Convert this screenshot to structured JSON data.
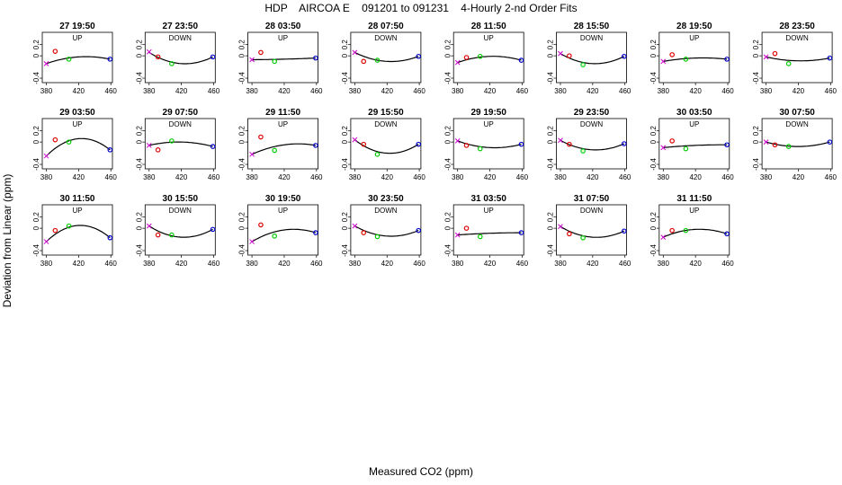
{
  "title": "HDP    AIRCOA E    091201 to 091231    4-Hourly 2-nd Order Fits",
  "xlabel": "Measured CO2 (ppm)",
  "ylabel": "Deviation from Linear (ppm)",
  "chart_data": {
    "type": "scatter",
    "xlim": [
      375,
      462
    ],
    "ylim": [
      -0.48,
      0.42
    ],
    "xticks": [
      "380",
      "420",
      "460"
    ],
    "yticks": [
      "-0.4",
      "0",
      "0.2"
    ],
    "colors": {
      "point1": "#cc00cc",
      "point2": "#dd0000",
      "point3": "#00cc00",
      "point4": "#0000cc",
      "curve": "#000000"
    },
    "panels": [
      {
        "title": "27 19:50",
        "dir": "UP",
        "points": [
          [
            380,
            -0.14
          ],
          [
            391,
            0.08
          ],
          [
            408,
            -0.06
          ],
          [
            459,
            -0.06
          ]
        ],
        "curve": [
          [
            380,
            -0.14
          ],
          [
            420,
            -0.02
          ],
          [
            459,
            -0.06
          ]
        ]
      },
      {
        "title": "27 23:50",
        "dir": "DOWN",
        "points": [
          [
            380,
            0.07
          ],
          [
            391,
            -0.02
          ],
          [
            408,
            -0.14
          ],
          [
            459,
            -0.02
          ]
        ],
        "curve": [
          [
            380,
            0.06
          ],
          [
            420,
            -0.14
          ],
          [
            459,
            -0.02
          ]
        ]
      },
      {
        "title": "28 03:50",
        "dir": "UP",
        "points": [
          [
            380,
            -0.07
          ],
          [
            391,
            0.06
          ],
          [
            408,
            -0.1
          ],
          [
            459,
            -0.04
          ]
        ],
        "curve": [
          [
            380,
            -0.07
          ],
          [
            420,
            -0.06
          ],
          [
            459,
            -0.04
          ]
        ]
      },
      {
        "title": "28 07:50",
        "dir": "DOWN",
        "points": [
          [
            380,
            0.06
          ],
          [
            391,
            -0.1
          ],
          [
            408,
            -0.08
          ],
          [
            459,
            -0.01
          ]
        ],
        "curve": [
          [
            380,
            0.06
          ],
          [
            420,
            -0.1
          ],
          [
            459,
            -0.01
          ]
        ]
      },
      {
        "title": "28 11:50",
        "dir": "UP",
        "points": [
          [
            380,
            -0.12
          ],
          [
            391,
            -0.03
          ],
          [
            408,
            -0.01
          ],
          [
            459,
            -0.08
          ]
        ],
        "curve": [
          [
            380,
            -0.12
          ],
          [
            420,
            -0.01
          ],
          [
            459,
            -0.08
          ]
        ]
      },
      {
        "title": "28 15:50",
        "dir": "DOWN",
        "points": [
          [
            380,
            0.04
          ],
          [
            391,
            0.0
          ],
          [
            408,
            -0.16
          ],
          [
            459,
            -0.01
          ]
        ],
        "curve": [
          [
            380,
            0.04
          ],
          [
            420,
            -0.14
          ],
          [
            459,
            -0.01
          ]
        ]
      },
      {
        "title": "28 19:50",
        "dir": "UP",
        "points": [
          [
            380,
            -0.1
          ],
          [
            391,
            0.02
          ],
          [
            408,
            -0.06
          ],
          [
            459,
            -0.06
          ]
        ],
        "curve": [
          [
            380,
            -0.1
          ],
          [
            420,
            -0.04
          ],
          [
            459,
            -0.06
          ]
        ]
      },
      {
        "title": "28 23:50",
        "dir": "DOWN",
        "points": [
          [
            380,
            -0.02
          ],
          [
            391,
            0.04
          ],
          [
            408,
            -0.14
          ],
          [
            459,
            -0.04
          ]
        ],
        "curve": [
          [
            380,
            -0.02
          ],
          [
            420,
            -0.09
          ],
          [
            459,
            -0.04
          ]
        ]
      },
      {
        "title": "29 03:50",
        "dir": "UP",
        "points": [
          [
            380,
            -0.25
          ],
          [
            391,
            0.04
          ],
          [
            408,
            0.0
          ],
          [
            459,
            -0.14
          ]
        ],
        "curve": [
          [
            380,
            -0.25
          ],
          [
            420,
            0.06
          ],
          [
            459,
            -0.14
          ]
        ]
      },
      {
        "title": "29 07:50",
        "dir": "DOWN",
        "points": [
          [
            380,
            -0.06
          ],
          [
            391,
            -0.14
          ],
          [
            408,
            0.02
          ],
          [
            459,
            -0.08
          ]
        ],
        "curve": [
          [
            380,
            -0.06
          ],
          [
            420,
            0.0
          ],
          [
            459,
            -0.08
          ]
        ]
      },
      {
        "title": "29 11:50",
        "dir": "UP",
        "points": [
          [
            380,
            -0.22
          ],
          [
            391,
            0.09
          ],
          [
            408,
            -0.15
          ],
          [
            459,
            -0.06
          ]
        ],
        "curve": [
          [
            380,
            -0.22
          ],
          [
            420,
            -0.05
          ],
          [
            459,
            -0.06
          ]
        ]
      },
      {
        "title": "29 15:50",
        "dir": "DOWN",
        "points": [
          [
            380,
            0.04
          ],
          [
            391,
            -0.04
          ],
          [
            408,
            -0.22
          ],
          [
            459,
            -0.04
          ]
        ],
        "curve": [
          [
            380,
            0.04
          ],
          [
            420,
            -0.2
          ],
          [
            459,
            -0.04
          ]
        ]
      },
      {
        "title": "29 19:50",
        "dir": "UP",
        "points": [
          [
            380,
            0.02
          ],
          [
            391,
            -0.06
          ],
          [
            408,
            -0.12
          ],
          [
            459,
            -0.04
          ]
        ],
        "curve": [
          [
            380,
            0.02
          ],
          [
            420,
            -0.1
          ],
          [
            459,
            -0.04
          ]
        ]
      },
      {
        "title": "29 23:50",
        "dir": "DOWN",
        "points": [
          [
            380,
            0.03
          ],
          [
            391,
            -0.04
          ],
          [
            408,
            -0.16
          ],
          [
            459,
            -0.03
          ]
        ],
        "curve": [
          [
            380,
            0.03
          ],
          [
            420,
            -0.14
          ],
          [
            459,
            -0.03
          ]
        ]
      },
      {
        "title": "30 03:50",
        "dir": "UP",
        "points": [
          [
            380,
            -0.1
          ],
          [
            391,
            0.02
          ],
          [
            408,
            -0.12
          ],
          [
            459,
            -0.05
          ]
        ],
        "curve": [
          [
            380,
            -0.1
          ],
          [
            420,
            -0.06
          ],
          [
            459,
            -0.05
          ]
        ]
      },
      {
        "title": "30 07:50",
        "dir": "DOWN",
        "points": [
          [
            380,
            0.0
          ],
          [
            391,
            -0.05
          ],
          [
            408,
            -0.08
          ],
          [
            459,
            0.0
          ]
        ],
        "curve": [
          [
            380,
            0.0
          ],
          [
            420,
            -0.08
          ],
          [
            459,
            0.0
          ]
        ]
      },
      {
        "title": "30 11:50",
        "dir": "UP",
        "points": [
          [
            380,
            -0.24
          ],
          [
            391,
            -0.04
          ],
          [
            408,
            0.04
          ],
          [
            459,
            -0.17
          ]
        ],
        "curve": [
          [
            380,
            -0.24
          ],
          [
            420,
            0.05
          ],
          [
            459,
            -0.17
          ]
        ]
      },
      {
        "title": "30 15:50",
        "dir": "DOWN",
        "points": [
          [
            380,
            0.04
          ],
          [
            391,
            -0.12
          ],
          [
            408,
            -0.12
          ],
          [
            459,
            -0.02
          ]
        ],
        "curve": [
          [
            380,
            0.04
          ],
          [
            420,
            -0.16
          ],
          [
            459,
            -0.02
          ]
        ]
      },
      {
        "title": "30 19:50",
        "dir": "UP",
        "points": [
          [
            380,
            -0.24
          ],
          [
            391,
            0.06
          ],
          [
            408,
            -0.14
          ],
          [
            459,
            -0.08
          ]
        ],
        "curve": [
          [
            380,
            -0.24
          ],
          [
            420,
            -0.03
          ],
          [
            459,
            -0.08
          ]
        ]
      },
      {
        "title": "30 23:50",
        "dir": "DOWN",
        "points": [
          [
            380,
            0.04
          ],
          [
            391,
            -0.08
          ],
          [
            408,
            -0.15
          ],
          [
            459,
            -0.04
          ]
        ],
        "curve": [
          [
            380,
            0.04
          ],
          [
            420,
            -0.14
          ],
          [
            459,
            -0.04
          ]
        ]
      },
      {
        "title": "31 03:50",
        "dir": "UP",
        "points": [
          [
            380,
            -0.12
          ],
          [
            391,
            0.0
          ],
          [
            408,
            -0.15
          ],
          [
            459,
            -0.08
          ]
        ],
        "curve": [
          [
            380,
            -0.12
          ],
          [
            420,
            -0.09
          ],
          [
            459,
            -0.08
          ]
        ]
      },
      {
        "title": "31 07:50",
        "dir": "DOWN",
        "points": [
          [
            380,
            0.03
          ],
          [
            391,
            -0.1
          ],
          [
            408,
            -0.17
          ],
          [
            459,
            -0.05
          ]
        ],
        "curve": [
          [
            380,
            0.03
          ],
          [
            420,
            -0.16
          ],
          [
            459,
            -0.05
          ]
        ]
      },
      {
        "title": "31 11:50",
        "dir": "UP",
        "points": [
          [
            380,
            -0.16
          ],
          [
            391,
            -0.04
          ],
          [
            408,
            -0.04
          ],
          [
            459,
            -0.1
          ]
        ],
        "curve": [
          [
            380,
            -0.16
          ],
          [
            420,
            -0.02
          ],
          [
            459,
            -0.1
          ]
        ]
      }
    ]
  }
}
